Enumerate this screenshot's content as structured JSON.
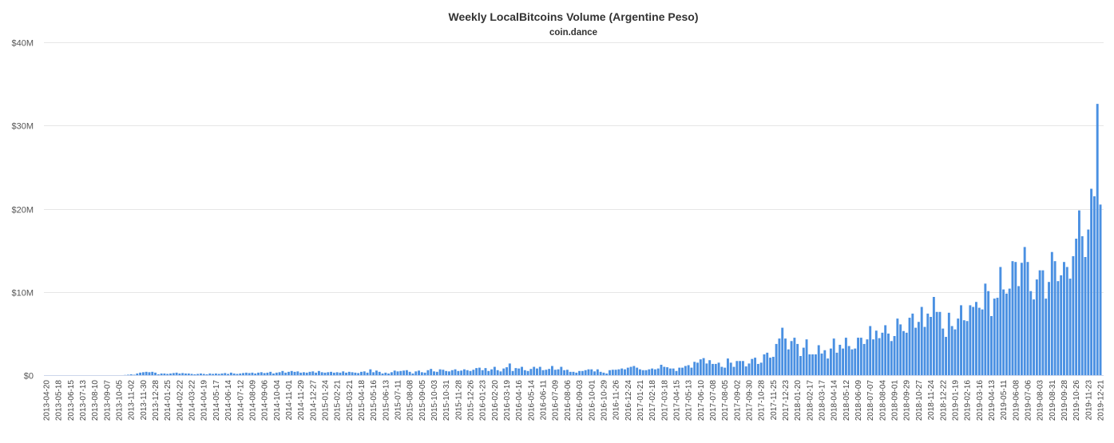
{
  "chart_data": {
    "type": "bar",
    "title": "Weekly LocalBitcoins Volume (Argentine Peso)",
    "subtitle": "coin.dance",
    "xlabel": "",
    "ylabel": "",
    "ylim": [
      0,
      40
    ],
    "y_tick_values": [
      0,
      10,
      20,
      30,
      40
    ],
    "y_tick_labels": [
      "$0",
      "$10M",
      "$20M",
      "$30M",
      "$40M"
    ],
    "grid": true,
    "bar_color": "#4a90e2",
    "x_tick_labels": [
      "2013-04-20",
      "2013-05-18",
      "2013-06-15",
      "2013-07-13",
      "2013-08-10",
      "2013-09-07",
      "2013-10-05",
      "2013-11-02",
      "2013-11-30",
      "2013-12-28",
      "2014-01-25",
      "2014-02-22",
      "2014-03-22",
      "2014-04-19",
      "2014-05-17",
      "2014-06-14",
      "2014-07-12",
      "2014-08-09",
      "2014-09-06",
      "2014-10-04",
      "2014-11-01",
      "2014-11-29",
      "2014-12-27",
      "2015-01-24",
      "2015-02-21",
      "2015-03-21",
      "2015-04-18",
      "2015-05-16",
      "2015-06-13",
      "2015-07-11",
      "2015-08-08",
      "2015-09-05",
      "2015-10-03",
      "2015-10-31",
      "2015-11-28",
      "2015-12-26",
      "2016-01-23",
      "2016-02-20",
      "2016-03-19",
      "2016-04-16",
      "2016-05-14",
      "2016-06-11",
      "2016-07-09",
      "2016-08-06",
      "2016-09-03",
      "2016-10-01",
      "2016-10-29",
      "2016-11-26",
      "2016-12-24",
      "2017-01-21",
      "2017-02-18",
      "2017-03-18",
      "2017-04-15",
      "2017-05-13",
      "2017-06-10",
      "2017-07-08",
      "2017-08-05",
      "2017-09-02",
      "2017-09-30",
      "2017-10-28",
      "2017-11-25",
      "2017-12-23",
      "2018-01-20",
      "2018-02-17",
      "2018-03-17",
      "2018-04-14",
      "2018-05-12",
      "2018-06-09",
      "2018-07-07",
      "2018-08-04",
      "2018-09-01",
      "2018-09-29",
      "2018-10-27",
      "2018-11-24",
      "2018-12-22",
      "2019-01-19",
      "2019-02-16",
      "2019-03-16",
      "2019-04-13",
      "2019-05-11",
      "2019-06-08",
      "2019-07-06",
      "2019-08-03",
      "2019-08-31",
      "2019-09-28",
      "2019-10-26",
      "2019-11-23",
      "2019-12-21"
    ],
    "values_millions": [
      0,
      0,
      0,
      0,
      0,
      0,
      0,
      0,
      0,
      0,
      0,
      0,
      0,
      0,
      0,
      0,
      0,
      0,
      0,
      0,
      0,
      0,
      0,
      0,
      0,
      0,
      0.02,
      0.05,
      0.1,
      0.05,
      0.2,
      0.3,
      0.35,
      0.4,
      0.35,
      0.4,
      0.3,
      0.1,
      0.2,
      0.2,
      0.15,
      0.2,
      0.25,
      0.3,
      0.2,
      0.25,
      0.2,
      0.2,
      0.15,
      0.1,
      0.15,
      0.2,
      0.15,
      0.1,
      0.2,
      0.15,
      0.2,
      0.15,
      0.2,
      0.25,
      0.15,
      0.3,
      0.2,
      0.15,
      0.2,
      0.25,
      0.3,
      0.25,
      0.3,
      0.2,
      0.3,
      0.35,
      0.25,
      0.3,
      0.4,
      0.2,
      0.3,
      0.35,
      0.5,
      0.3,
      0.4,
      0.5,
      0.4,
      0.45,
      0.3,
      0.35,
      0.3,
      0.4,
      0.45,
      0.3,
      0.5,
      0.35,
      0.3,
      0.35,
      0.4,
      0.3,
      0.35,
      0.3,
      0.45,
      0.3,
      0.4,
      0.35,
      0.3,
      0.25,
      0.4,
      0.45,
      0.3,
      0.7,
      0.35,
      0.55,
      0.4,
      0.2,
      0.3,
      0.2,
      0.35,
      0.55,
      0.45,
      0.5,
      0.55,
      0.6,
      0.4,
      0.2,
      0.45,
      0.55,
      0.35,
      0.3,
      0.6,
      0.75,
      0.45,
      0.4,
      0.7,
      0.65,
      0.5,
      0.45,
      0.6,
      0.7,
      0.5,
      0.55,
      0.7,
      0.6,
      0.5,
      0.65,
      0.85,
      0.9,
      0.6,
      0.85,
      0.5,
      0.7,
      1.0,
      0.6,
      0.45,
      0.8,
      0.95,
      1.4,
      0.5,
      0.85,
      0.8,
      1.0,
      0.6,
      0.5,
      0.75,
      1.0,
      0.8,
      1.0,
      0.6,
      0.65,
      0.75,
      1.1,
      0.65,
      0.7,
      1.0,
      0.6,
      0.65,
      0.4,
      0.4,
      0.3,
      0.5,
      0.5,
      0.6,
      0.7,
      0.7,
      0.45,
      0.7,
      0.4,
      0.3,
      0.2,
      0.6,
      0.65,
      0.65,
      0.7,
      0.8,
      0.7,
      0.9,
      1.0,
      1.1,
      0.9,
      0.7,
      0.6,
      0.6,
      0.7,
      0.8,
      0.7,
      0.8,
      1.25,
      1.0,
      0.95,
      0.8,
      0.8,
      0.5,
      0.9,
      0.9,
      1.1,
      1.2,
      0.9,
      1.6,
      1.5,
      1.9,
      2.05,
      1.4,
      1.8,
      1.35,
      1.35,
      1.5,
      1.0,
      0.9,
      2.0,
      1.5,
      1.0,
      1.7,
      1.7,
      1.7,
      1.05,
      1.4,
      1.95,
      2.1,
      1.35,
      1.5,
      2.5,
      2.7,
      2.1,
      2.2,
      3.75,
      4.4,
      5.7,
      4.4,
      3.1,
      4.1,
      4.5,
      3.75,
      2.3,
      3.3,
      4.3,
      2.5,
      2.5,
      2.5,
      3.6,
      2.6,
      3.0,
      2.0,
      3.2,
      4.4,
      2.7,
      3.65,
      3.2,
      4.5,
      3.5,
      3.1,
      3.2,
      4.5,
      4.5,
      3.75,
      4.3,
      5.9,
      4.3,
      5.35,
      4.45,
      5.1,
      6.0,
      5.0,
      4.1,
      4.7,
      6.8,
      6.1,
      5.3,
      5.1,
      6.9,
      7.4,
      5.7,
      6.4,
      8.2,
      5.8,
      7.4,
      7.0,
      9.4,
      7.6,
      7.6,
      5.6,
      4.6,
      7.5,
      5.9,
      5.5,
      6.8,
      8.4,
      6.6,
      6.5,
      8.4,
      8.2,
      8.8,
      8.1,
      7.9,
      11.0,
      10.1,
      7.1,
      9.2,
      9.3,
      13.0,
      10.3,
      9.8,
      10.4,
      13.7,
      13.6,
      10.7,
      13.5,
      15.4,
      13.6,
      10.1,
      9.1,
      11.5,
      12.6,
      12.6,
      9.2,
      11.2,
      14.8,
      13.7,
      11.3,
      12.0,
      13.6,
      13.0,
      11.6,
      14.3,
      16.4,
      19.8,
      16.7,
      14.2,
      17.5,
      22.4,
      21.5,
      32.6,
      20.5
    ]
  }
}
